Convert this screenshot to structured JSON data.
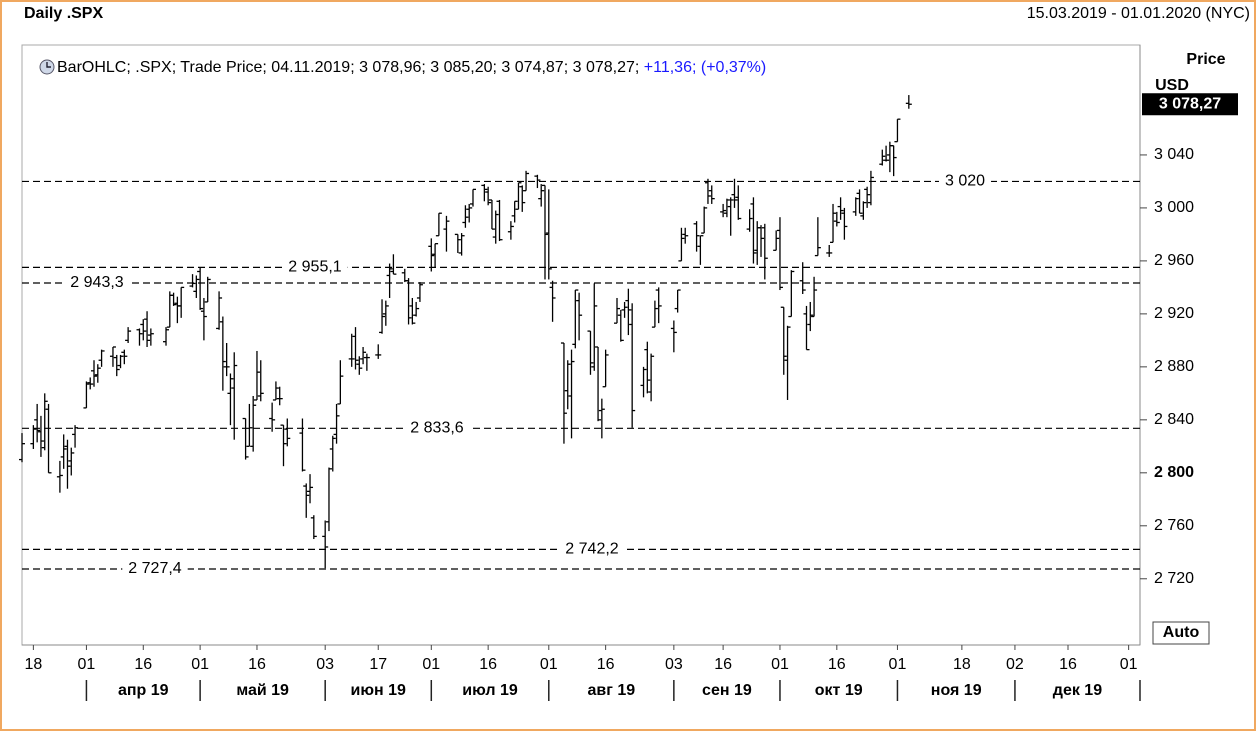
{
  "chart_data": {
    "type": "ohlc",
    "title": "Daily .SPX",
    "range": "15.03.2019 - 01.01.2020 (NYC)",
    "legend": {
      "text": "BarOHLC; .SPX; Trade Price; 04.11.2019; 3 078,96; 3 085,20; 3 074,87; 3 078,27;",
      "change": "+11,36; (+0,37%)"
    },
    "axis_title": "Price",
    "axis_unit": "USD",
    "auto": "Auto",
    "color": "#000000",
    "change_color": "#1a1aff",
    "last_price": {
      "value": 3078.27,
      "label": "3 078,27"
    },
    "x": [
      "2019-03-15",
      "2019-03-18",
      "2019-03-19",
      "2019-03-20",
      "2019-03-21",
      "2019-03-22",
      "2019-03-25",
      "2019-03-26",
      "2019-03-27",
      "2019-03-28",
      "2019-03-29",
      "2019-04-01",
      "2019-04-02",
      "2019-04-03",
      "2019-04-04",
      "2019-04-05",
      "2019-04-08",
      "2019-04-09",
      "2019-04-10",
      "2019-04-11",
      "2019-04-12",
      "2019-04-15",
      "2019-04-16",
      "2019-04-17",
      "2019-04-18",
      "2019-04-22",
      "2019-04-23",
      "2019-04-24",
      "2019-04-25",
      "2019-04-26",
      "2019-04-29",
      "2019-04-30",
      "2019-05-01",
      "2019-05-02",
      "2019-05-03",
      "2019-05-06",
      "2019-05-07",
      "2019-05-08",
      "2019-05-09",
      "2019-05-10",
      "2019-05-13",
      "2019-05-14",
      "2019-05-15",
      "2019-05-16",
      "2019-05-17",
      "2019-05-20",
      "2019-05-21",
      "2019-05-22",
      "2019-05-23",
      "2019-05-24",
      "2019-05-28",
      "2019-05-29",
      "2019-05-30",
      "2019-05-31",
      "2019-06-03",
      "2019-06-04",
      "2019-06-05",
      "2019-06-06",
      "2019-06-07",
      "2019-06-10",
      "2019-06-11",
      "2019-06-12",
      "2019-06-13",
      "2019-06-14",
      "2019-06-17",
      "2019-06-18",
      "2019-06-19",
      "2019-06-20",
      "2019-06-21",
      "2019-06-24",
      "2019-06-25",
      "2019-06-26",
      "2019-06-27",
      "2019-06-28",
      "2019-07-01",
      "2019-07-02",
      "2019-07-03",
      "2019-07-05",
      "2019-07-08",
      "2019-07-09",
      "2019-07-10",
      "2019-07-11",
      "2019-07-12",
      "2019-07-15",
      "2019-07-16",
      "2019-07-17",
      "2019-07-18",
      "2019-07-19",
      "2019-07-22",
      "2019-07-23",
      "2019-07-24",
      "2019-07-25",
      "2019-07-26",
      "2019-07-29",
      "2019-07-30",
      "2019-07-31",
      "2019-08-01",
      "2019-08-02",
      "2019-08-05",
      "2019-08-06",
      "2019-08-07",
      "2019-08-08",
      "2019-08-09",
      "2019-08-12",
      "2019-08-13",
      "2019-08-14",
      "2019-08-15",
      "2019-08-16",
      "2019-08-19",
      "2019-08-20",
      "2019-08-21",
      "2019-08-22",
      "2019-08-23",
      "2019-08-26",
      "2019-08-27",
      "2019-08-28",
      "2019-08-29",
      "2019-08-30",
      "2019-09-03",
      "2019-09-04",
      "2019-09-05",
      "2019-09-06",
      "2019-09-09",
      "2019-09-10",
      "2019-09-11",
      "2019-09-12",
      "2019-09-13",
      "2019-09-16",
      "2019-09-17",
      "2019-09-18",
      "2019-09-19",
      "2019-09-20",
      "2019-09-23",
      "2019-09-24",
      "2019-09-25",
      "2019-09-26",
      "2019-09-27",
      "2019-09-30",
      "2019-10-01",
      "2019-10-02",
      "2019-10-03",
      "2019-10-04",
      "2019-10-07",
      "2019-10-08",
      "2019-10-09",
      "2019-10-10",
      "2019-10-11",
      "2019-10-14",
      "2019-10-15",
      "2019-10-16",
      "2019-10-17",
      "2019-10-18",
      "2019-10-21",
      "2019-10-22",
      "2019-10-23",
      "2019-10-24",
      "2019-10-25",
      "2019-10-28",
      "2019-10-29",
      "2019-10-30",
      "2019-10-31",
      "2019-11-01",
      "2019-11-04"
    ],
    "open": [
      2810,
      2822,
      2840,
      2831,
      2819,
      2848,
      2797,
      2812,
      2820,
      2809,
      2829,
      2849,
      2868,
      2877,
      2874,
      2885,
      2888,
      2887,
      2881,
      2891,
      2900,
      2908,
      2912,
      2916,
      2904,
      2899,
      2910,
      2934,
      2928,
      2926,
      2941,
      2937,
      2952,
      2922,
      2929,
      2909,
      2914,
      2880,
      2860,
      2864,
      2841,
      2820,
      2820,
      2855,
      2858,
      2841,
      2855,
      2856,
      2836,
      2833,
      2830,
      2790,
      2786,
      2766,
      2752,
      2763,
      2818,
      2829,
      2852,
      2886,
      2903,
      2882,
      2886,
      2887,
      2889,
      2906,
      2920,
      2949,
      2952,
      2951,
      2945,
      2926,
      2919,
      2932,
      2971,
      2965,
      2979,
      2984,
      2980,
      2966,
      2989,
      2999,
      3003,
      3017,
      3012,
      3006,
      2978,
      3005,
      2982,
      2994,
      2999,
      3016,
      3013,
      3024,
      3007,
      3017,
      2981,
      2940,
      2898,
      2862,
      2858,
      2897,
      2930,
      2907,
      2880,
      2895,
      2847,
      2865,
      2913,
      2919,
      2923,
      2930,
      2912,
      2866,
      2893,
      2861,
      2910,
      2938,
      2909,
      2924,
      2960,
      2980,
      2988,
      2971,
      2981,
      3019,
      3013,
      2997,
      2996,
      3001,
      3010,
      3008,
      2984,
      3003,
      2968,
      2985,
      2985,
      2968,
      2983,
      2925,
      2885,
      2918,
      2945,
      2920,
      2912,
      2918,
      2964,
      2966,
      2974,
      2990,
      3001,
      2996,
      2997,
      3011,
      2994,
      3014,
      3004,
      3033,
      3036,
      3040,
      3047,
      3050,
      3078.96
    ],
    "high": [
      2830,
      2836,
      2852,
      2843,
      2860,
      2852,
      2809,
      2829,
      2825,
      2819,
      2836,
      2869,
      2872,
      2885,
      2882,
      2893,
      2895,
      2889,
      2889,
      2893,
      2910,
      2909,
      2916,
      2922,
      2909,
      2910,
      2937,
      2936,
      2933,
      2940,
      2950,
      2949,
      2955,
      2932,
      2948,
      2937,
      2918,
      2898,
      2875,
      2891,
      2841,
      2852,
      2858,
      2892,
      2885,
      2853,
      2869,
      2865,
      2836,
      2841,
      2841,
      2792,
      2799,
      2768,
      2764,
      2804,
      2828,
      2852,
      2885,
      2905,
      2910,
      2888,
      2895,
      2890,
      2897,
      2931,
      2930,
      2958,
      2965,
      2954,
      2947,
      2932,
      2929,
      2944,
      2977,
      2973,
      2996,
      2994,
      2980,
      2981,
      3002,
      3003,
      3014,
      3018,
      3016,
      3006,
      2998,
      3006,
      2990,
      3005,
      3019,
      3017,
      3028,
      3025,
      3018,
      3017,
      3014,
      2945,
      2898,
      2885,
      2893,
      2938,
      2936,
      2907,
      2943,
      2895,
      2856,
      2893,
      2932,
      2923,
      2929,
      2939,
      2928,
      2880,
      2899,
      2890,
      2930,
      2940,
      2915,
      2938,
      2985,
      2985,
      2990,
      2979,
      3001,
      3022,
      3017,
      3003,
      3007,
      3008,
      3022,
      3017,
      2999,
      3008,
      2990,
      2987,
      2988,
      2983,
      2993,
      2925,
      2911,
      2953,
      2959,
      2926,
      2929,
      2948,
      2993,
      2972,
      3003,
      2997,
      3008,
      3000,
      3008,
      3014,
      3005,
      3016,
      3028,
      3044,
      3047,
      3050,
      3047,
      3067,
      3085.2
    ],
    "low": [
      2808,
      2818,
      2823,
      2812,
      2817,
      2800,
      2785,
      2803,
      2788,
      2798,
      2819,
      2849,
      2863,
      2865,
      2868,
      2880,
      2880,
      2873,
      2879,
      2882,
      2898,
      2896,
      2900,
      2895,
      2896,
      2896,
      2910,
      2926,
      2913,
      2917,
      2940,
      2932,
      2923,
      2900,
      2929,
      2908,
      2862,
      2873,
      2836,
      2825,
      2810,
      2820,
      2816,
      2855,
      2854,
      2831,
      2855,
      2851,
      2805,
      2820,
      2801,
      2766,
      2777,
      2750,
      2728,
      2756,
      2801,
      2822,
      2852,
      2880,
      2878,
      2874,
      2882,
      2877,
      2886,
      2905,
      2911,
      2932,
      2950,
      2944,
      2912,
      2912,
      2918,
      2929,
      2952,
      2955,
      2979,
      2967,
      2966,
      2964,
      2985,
      2989,
      3001,
      3005,
      3002,
      2984,
      2973,
      2975,
      2976,
      2989,
      2999,
      2997,
      3013,
      3015,
      3001,
      2946,
      2946,
      2914,
      2822,
      2848,
      2826,
      2894,
      2900,
      2874,
      2877,
      2839,
      2826,
      2865,
      2913,
      2899,
      2917,
      2904,
      2834,
      2857,
      2860,
      2854,
      2910,
      2913,
      2891,
      2921,
      2960,
      2973,
      2967,
      2957,
      2981,
      3003,
      3003,
      2993,
      2993,
      2979,
      3000,
      2991,
      2982,
      2958,
      2957,
      2963,
      2946,
      2968,
      2938,
      2874,
      2855,
      2918,
      2935,
      2893,
      2907,
      2918,
      2964,
      2963,
      2974,
      2986,
      2991,
      2976,
      2994,
      2996,
      2991,
      3000,
      3002,
      3032,
      3035,
      3027,
      3024,
      3050,
      3074.87
    ],
    "close": [
      2822,
      2833,
      2832,
      2824,
      2854,
      2800,
      2798,
      2818,
      2805,
      2815,
      2834,
      2867,
      2867,
      2873,
      2879,
      2892,
      2895,
      2878,
      2888,
      2888,
      2907,
      2905,
      2907,
      2900,
      2905,
      2908,
      2934,
      2927,
      2926,
      2940,
      2943,
      2946,
      2924,
      2918,
      2946,
      2932,
      2884,
      2880,
      2871,
      2881,
      2812,
      2834,
      2851,
      2876,
      2860,
      2840,
      2864,
      2856,
      2822,
      2826,
      2802,
      2783,
      2789,
      2752,
      2744,
      2803,
      2826,
      2843,
      2873,
      2886,
      2885,
      2879,
      2891,
      2887,
      2889,
      2918,
      2926,
      2954,
      2950,
      2945,
      2917,
      2913,
      2924,
      2942,
      2964,
      2973,
      2996,
      2990,
      2976,
      2979,
      2993,
      3000,
      3014,
      3014,
      3004,
      2984,
      2995,
      2976,
      2986,
      3005,
      3019,
      3004,
      3026,
      3021,
      3013,
      2980,
      2954,
      2932,
      2845,
      2882,
      2884,
      2938,
      2919,
      2883,
      2926,
      2840,
      2848,
      2889,
      2924,
      2900,
      2925,
      2923,
      2847,
      2878,
      2870,
      2888,
      2924,
      2926,
      2906,
      2938,
      2977,
      2979,
      2979,
      2979,
      3000,
      3009,
      3007,
      2998,
      3006,
      3006,
      3006,
      2992,
      2992,
      2966,
      2985,
      2977,
      2962,
      2977,
      2940,
      2888,
      2910,
      2952,
      2938,
      2893,
      2919,
      2938,
      2970,
      2966,
      2996,
      2989,
      2998,
      2986,
      3007,
      2996,
      3004,
      3010,
      3023,
      3039,
      3036,
      3047,
      3038,
      3067,
      3078.27
    ],
    "levels": [
      {
        "value": 3020,
        "label": "3 020"
      },
      {
        "value": 2955.1,
        "label": "2 955,1"
      },
      {
        "value": 2943.3,
        "label": "2 943,3"
      },
      {
        "value": 2833.6,
        "label": "2 833,6"
      },
      {
        "value": 2742.2,
        "label": "2 742,2"
      },
      {
        "value": 2727.4,
        "label": "2 727,4"
      }
    ],
    "xlim": [
      "2019-03-15",
      "2020-01-04"
    ],
    "xticks": [
      {
        "value": "2019-03-18",
        "label": "18"
      },
      {
        "value": "2019-04-01",
        "label": "01"
      },
      {
        "value": "2019-04-16",
        "label": "16"
      },
      {
        "value": "2019-05-01",
        "label": "01"
      },
      {
        "value": "2019-05-16",
        "label": "16"
      },
      {
        "value": "2019-06-03",
        "label": "03"
      },
      {
        "value": "2019-06-17",
        "label": "17"
      },
      {
        "value": "2019-07-01",
        "label": "01"
      },
      {
        "value": "2019-07-16",
        "label": "16"
      },
      {
        "value": "2019-08-01",
        "label": "01"
      },
      {
        "value": "2019-08-16",
        "label": "16"
      },
      {
        "value": "2019-09-03",
        "label": "03"
      },
      {
        "value": "2019-09-16",
        "label": "16"
      },
      {
        "value": "2019-10-01",
        "label": "01"
      },
      {
        "value": "2019-10-16",
        "label": "16"
      },
      {
        "value": "2019-11-01",
        "label": "01"
      },
      {
        "value": "2019-11-18",
        "label": "18"
      },
      {
        "value": "2019-12-02",
        "label": "02"
      },
      {
        "value": "2019-12-16",
        "label": "16"
      },
      {
        "value": "2020-01-01",
        "label": "01"
      }
    ],
    "months": [
      {
        "label": "апр 19",
        "start": "2019-04-01",
        "end": "2019-05-01"
      },
      {
        "label": "май 19",
        "start": "2019-05-01",
        "end": "2019-06-03"
      },
      {
        "label": "июн 19",
        "start": "2019-06-03",
        "end": "2019-07-01"
      },
      {
        "label": "июл 19",
        "start": "2019-07-01",
        "end": "2019-08-01"
      },
      {
        "label": "авг 19",
        "start": "2019-08-01",
        "end": "2019-09-03"
      },
      {
        "label": "сен 19",
        "start": "2019-09-03",
        "end": "2019-10-01"
      },
      {
        "label": "окт 19",
        "start": "2019-10-01",
        "end": "2019-11-01"
      },
      {
        "label": "ноя 19",
        "start": "2019-11-01",
        "end": "2019-12-02"
      },
      {
        "label": "дек 19",
        "start": "2019-12-02",
        "end": "2020-01-04"
      }
    ],
    "ylim": [
      2670,
      3123
    ],
    "yticks": [
      {
        "value": 2720,
        "label": "2 720"
      },
      {
        "value": 2760,
        "label": "2 760"
      },
      {
        "value": 2800,
        "label": "2 800",
        "bold": true
      },
      {
        "value": 2840,
        "label": "2 840"
      },
      {
        "value": 2880,
        "label": "2 880"
      },
      {
        "value": 2920,
        "label": "2 920"
      },
      {
        "value": 2960,
        "label": "2 960"
      },
      {
        "value": 3000,
        "label": "3 000"
      },
      {
        "value": 3040,
        "label": "3 040"
      }
    ]
  }
}
